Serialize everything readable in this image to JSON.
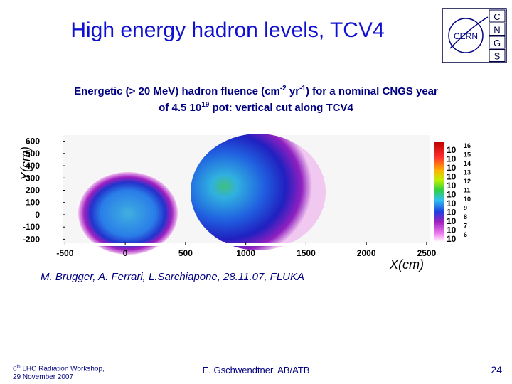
{
  "header": {
    "title": "High energy hadron levels, TCV4",
    "logo_text": "CERN",
    "logo_letters": [
      "C",
      "N",
      "G",
      "S"
    ]
  },
  "caption": {
    "lines": [
      [
        {
          "text": "Energetic (> 20 MeV) hadron fluence (cm",
          "sup": false
        },
        {
          "text": "-2",
          "sup": true
        },
        {
          "text": " yr",
          "sup": false
        },
        {
          "text": "-1",
          "sup": true
        },
        {
          "text": ") for a nominal CNGS year",
          "sup": false
        }
      ],
      [
        {
          "text": "of 4.5 10",
          "sup": false
        },
        {
          "text": "19",
          "sup": true
        },
        {
          "text": " pot: vertical cut along TCV4",
          "sup": false
        }
      ]
    ]
  },
  "plot": {
    "xlabel": "X(cm)",
    "ylabel": "Y(cm)",
    "xlim": [
      -520,
      2530
    ],
    "ylim": [
      -250,
      650
    ],
    "xticks": [
      -500,
      0,
      500,
      1000,
      1500,
      2000,
      2500
    ],
    "yticks": [
      600,
      500,
      400,
      300,
      200,
      100,
      0,
      -100,
      -200
    ],
    "colorbar": {
      "base": "10",
      "exponents": [
        16,
        15,
        14,
        13,
        12,
        11,
        10,
        9,
        8,
        7,
        6
      ]
    }
  },
  "authors": "M. Brugger, A. Ferrari,  L.Sarchiapone, 28.11.07, FLUKA",
  "footer": {
    "workshop_number": "6",
    "workshop_suffix": "th",
    "workshop_rest": " LHC Radiation Workshop,",
    "date": "29 November 2007",
    "author": "E. Gschwendtner, AB/ATB",
    "page": "24"
  }
}
